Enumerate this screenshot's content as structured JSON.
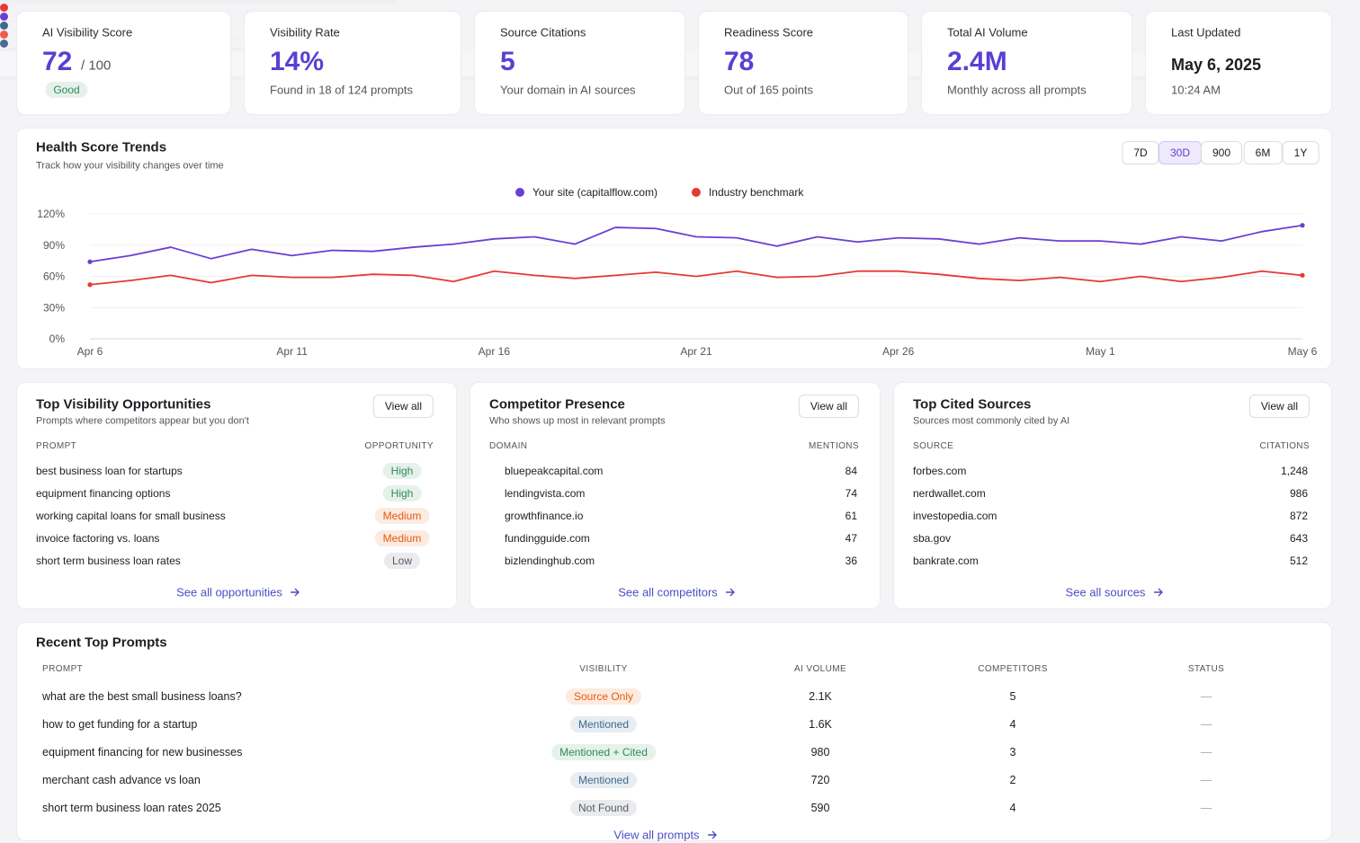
{
  "kpis": [
    {
      "label": "AI Visibility Score",
      "value": "72",
      "suffix": "/ 100",
      "badge": {
        "text": "Good",
        "color": "#2e8b57"
      }
    },
    {
      "label": "Visibility Rate",
      "value": "14%",
      "note": "Found in 18 of 124 prompts"
    },
    {
      "label": "Source Citations",
      "value": "5",
      "note": "Your domain in AI sources"
    },
    {
      "label": "Readiness Score",
      "value": "78",
      "note": "Out of 165 points"
    },
    {
      "label": "Total AI Volume",
      "value": "2.4M",
      "note": "Monthly across all prompts"
    },
    {
      "label": "Last Updated",
      "date": "May 6, 2025",
      "note": "10:24 AM"
    }
  ],
  "trend": {
    "title": "Health Score Trends",
    "subtitle": "Track how your visibility changes over time",
    "ranges": [
      "7D",
      "30D",
      "900",
      "6M",
      "1Y"
    ],
    "active_range": 1,
    "chart_data": {
      "type": "line",
      "categories": [
        "Apr 6",
        null,
        null,
        null,
        null,
        "Apr 11",
        null,
        null,
        null,
        null,
        "Apr 16",
        null,
        null,
        null,
        null,
        "Apr 21",
        null,
        null,
        null,
        null,
        "Apr 26",
        null,
        null,
        null,
        null,
        "May 1",
        null,
        null,
        null,
        null,
        "May 6"
      ],
      "series": [
        {
          "name": "Your site (capitalflow.com)",
          "color": "#6a3fd4",
          "values": [
            74,
            80,
            88,
            77,
            86,
            80,
            85,
            84,
            88,
            91,
            96,
            98,
            91,
            107,
            106,
            98,
            97,
            89,
            98,
            93,
            97,
            96,
            91,
            97,
            94,
            94,
            91,
            98,
            94,
            103,
            109
          ]
        },
        {
          "name": "Industry benchmark",
          "color": "#e53935",
          "values": [
            52,
            56,
            61,
            54,
            61,
            59,
            59,
            62,
            61,
            55,
            65,
            61,
            58,
            61,
            64,
            60,
            65,
            59,
            60,
            65,
            65,
            62,
            58,
            56,
            59,
            55,
            60,
            55,
            59,
            65,
            61
          ]
        }
      ],
      "ylim": [
        0,
        120
      ],
      "yticks": [
        {
          "value": 0,
          "label": "0%"
        },
        {
          "value": 30,
          "label": "30%"
        },
        {
          "value": 60,
          "label": "60%"
        },
        {
          "value": 90,
          "label": "90%"
        },
        {
          "value": 120,
          "label": "120%"
        }
      ],
      "grid": true
    }
  },
  "panels": [
    {
      "title": "Top Visibility Opportunities",
      "subtitle": "Prompts where competitors appear but you don't",
      "button": "View all",
      "columns": [
        "PROMPT",
        "OPPORTUNITY"
      ],
      "rows": [
        {
          "name": "best business loan for startups",
          "badge": {
            "text": "High",
            "color": "#2e8b57"
          }
        },
        {
          "name": "equipment financing options",
          "badge": {
            "text": "High",
            "color": "#2e8b57"
          }
        },
        {
          "name": "working capital loans for small business",
          "badge": {
            "text": "Medium",
            "color": "#e8590c"
          }
        },
        {
          "name": "invoice factoring vs. loans",
          "badge": {
            "text": "Medium",
            "color": "#e8590c"
          }
        },
        {
          "name": "short term business loan rates",
          "badge": {
            "text": "Low",
            "color": "#555b66"
          }
        }
      ],
      "footer": "See all opportunities"
    },
    {
      "title": "Competitor Presence",
      "subtitle": "Who shows up most in relevant prompts",
      "button": "View all",
      "columns": [
        "DOMAIN",
        "MENTIONS"
      ],
      "rows": [
        {
          "name": "bluepeakcapital.com",
          "value": "84",
          "color": "#e53935"
        },
        {
          "name": "lendingvista.com",
          "value": "74",
          "color": "#6a3fd4"
        },
        {
          "name": "growthfinance.io",
          "value": "61",
          "color": "#3d6a8f"
        },
        {
          "name": "fundingguide.com",
          "value": "47",
          "color": "#ef5b4b"
        },
        {
          "name": "bizlendinghub.com",
          "value": "36",
          "color": "#4a6c93"
        }
      ],
      "footer": "See all competitors"
    },
    {
      "title": "Top Cited Sources",
      "subtitle": "Sources most commonly cited by AI",
      "button": "View all",
      "columns": [
        "SOURCE",
        "CITATIONS"
      ],
      "rows": [
        {
          "name": "forbes.com",
          "value": "1,248"
        },
        {
          "name": "nerdwallet.com",
          "value": "986"
        },
        {
          "name": "investopedia.com",
          "value": "872"
        },
        {
          "name": "sba.gov",
          "value": "643"
        },
        {
          "name": "bankrate.com",
          "value": "512"
        }
      ],
      "footer": "See all sources"
    }
  ],
  "prompts": {
    "title": "Recent Top Prompts",
    "columns": [
      "PROMPT",
      "VISIBILITY",
      "AI VOLUME",
      "COMPETITORS",
      "STATUS"
    ],
    "rows": [
      {
        "prompt": "what are the best small business loans?",
        "visibility": {
          "text": "Source Only",
          "color": "#e8590c"
        },
        "volume": "2.1K",
        "competitors": "5",
        "status": "—"
      },
      {
        "prompt": "how to get funding for a startup",
        "visibility": {
          "text": "Mentioned",
          "color": "#3d6a8f"
        },
        "volume": "1.6K",
        "competitors": "4",
        "status": "—"
      },
      {
        "prompt": "equipment financing for new businesses",
        "visibility": {
          "text": "Mentioned + Cited",
          "color": "#2e8b57"
        },
        "volume": "980",
        "competitors": "3",
        "status": "—"
      },
      {
        "prompt": "merchant cash advance vs loan",
        "visibility": {
          "text": "Mentioned",
          "color": "#3d6a8f"
        },
        "volume": "720",
        "competitors": "2",
        "status": "—"
      },
      {
        "prompt": "short term business loan rates 2025",
        "visibility": {
          "text": "Not Found",
          "color": "#555b66"
        },
        "volume": "590",
        "competitors": "4",
        "status": "—"
      }
    ],
    "footer": "View all prompts"
  }
}
